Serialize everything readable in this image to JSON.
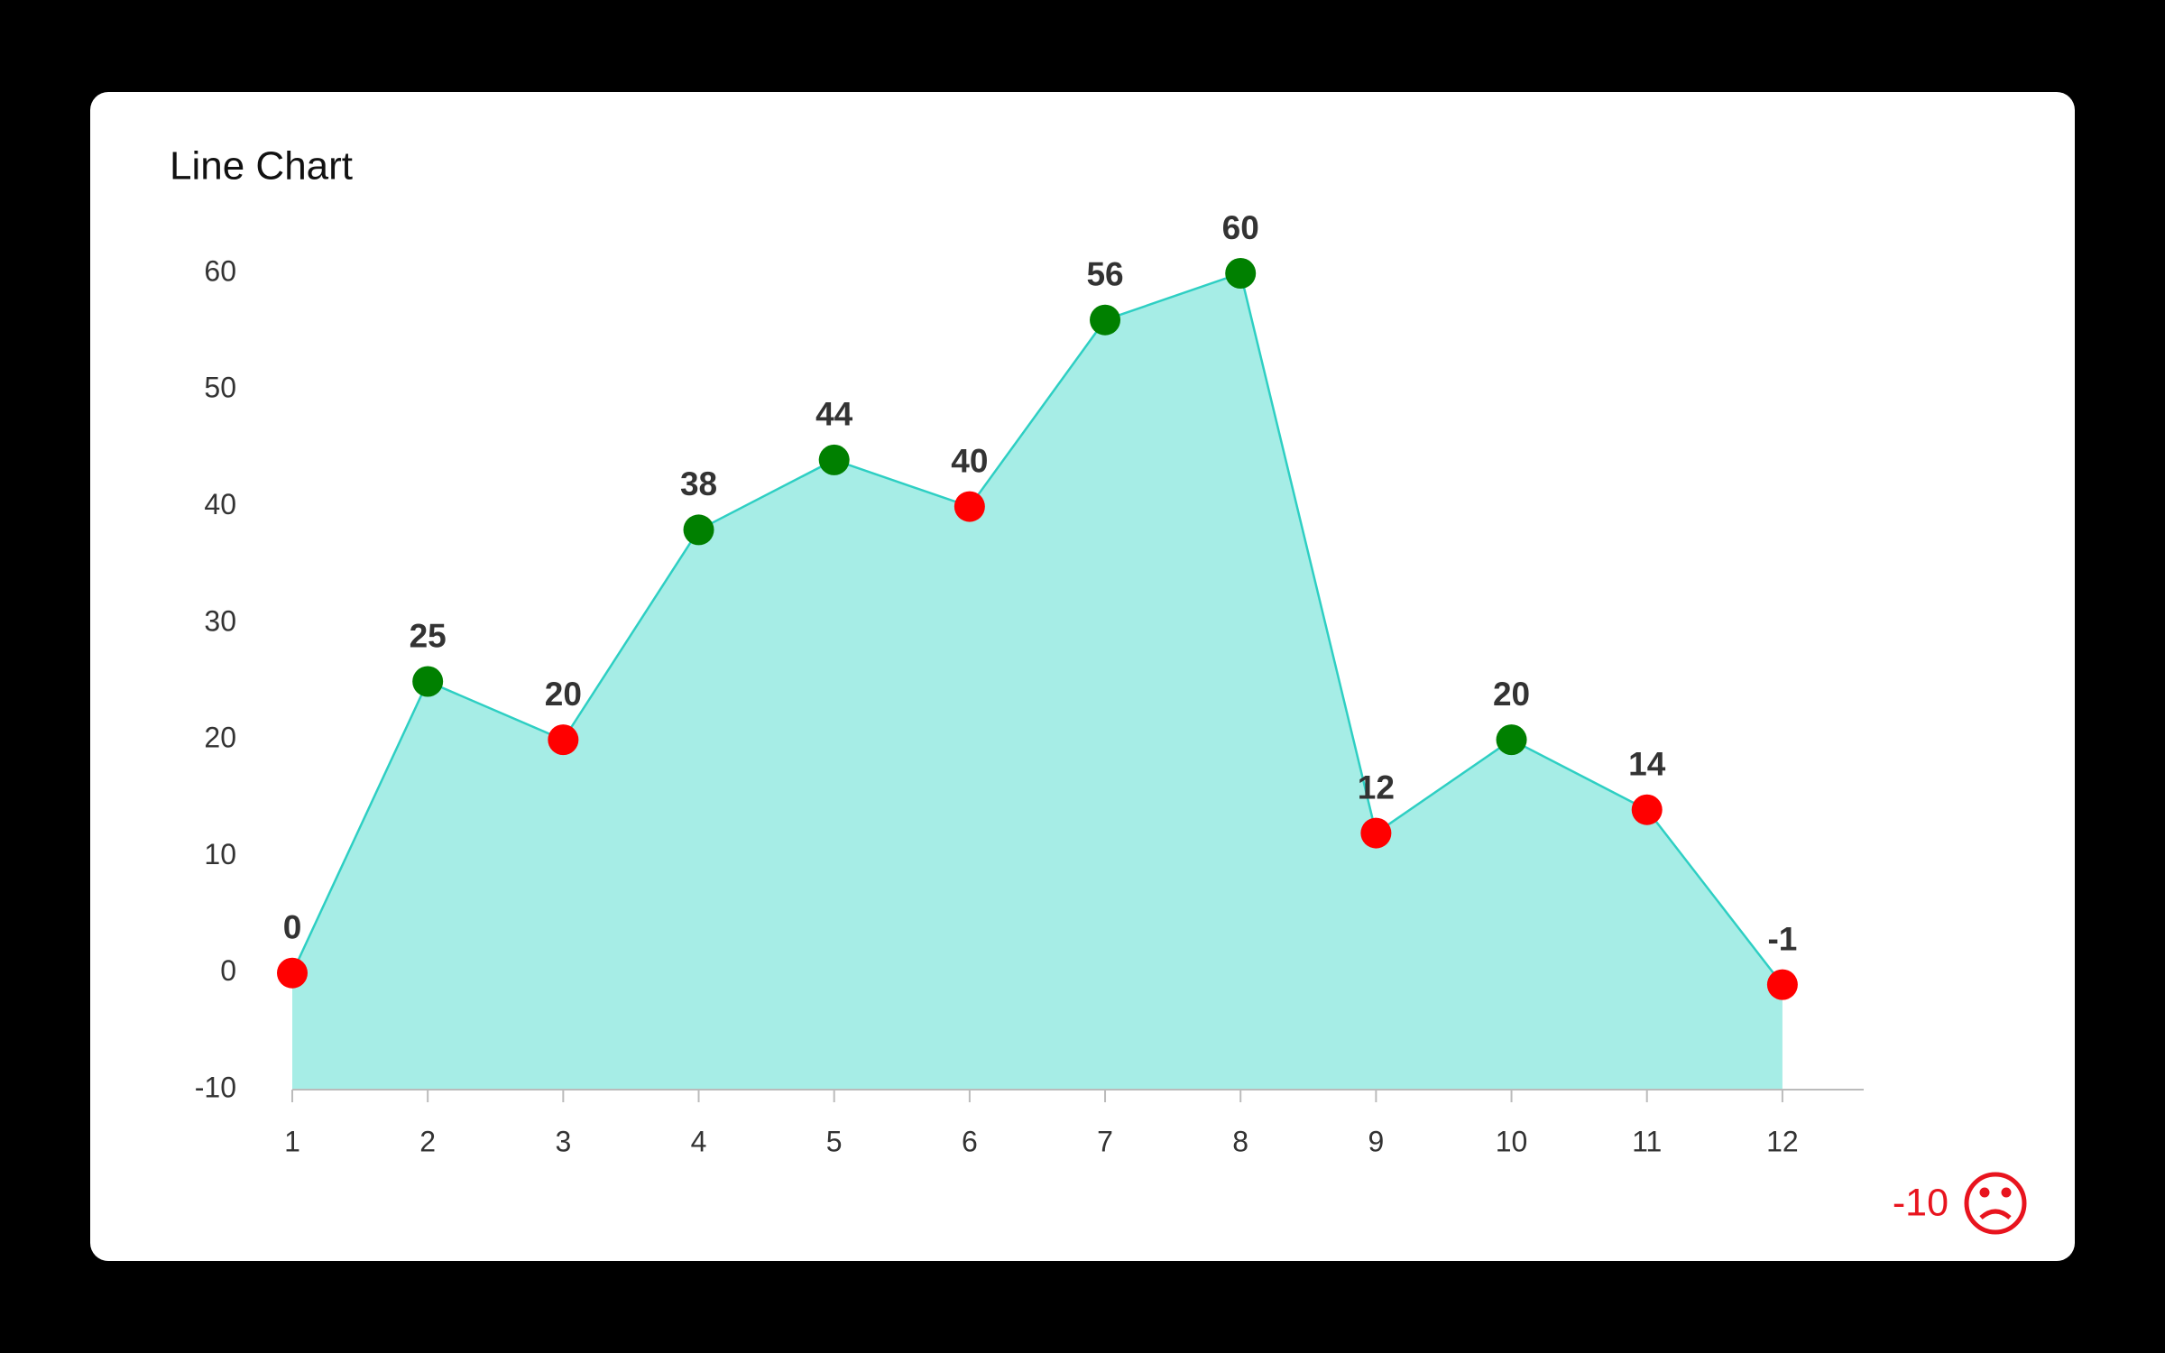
{
  "chart_data": {
    "type": "area",
    "title": "Line Chart",
    "x": [
      1,
      2,
      3,
      4,
      5,
      6,
      7,
      8,
      9,
      10,
      11,
      12
    ],
    "values": [
      0,
      25,
      20,
      38,
      44,
      40,
      56,
      60,
      12,
      20,
      14,
      -1
    ],
    "point_colors": [
      "#ff0000",
      "#008000",
      "#ff0000",
      "#008000",
      "#008000",
      "#ff0000",
      "#008000",
      "#008000",
      "#ff0000",
      "#008000",
      "#ff0000",
      "#ff0000"
    ],
    "line_color": "#2ecfc3",
    "fill_color": "#a6ede6",
    "xlim": [
      1,
      12.6
    ],
    "xticks": [
      1,
      2,
      3,
      4,
      5,
      6,
      7,
      8,
      9,
      10,
      11,
      12
    ],
    "ylim": [
      -10,
      60
    ],
    "yticks": [
      -10,
      0,
      10,
      20,
      30,
      40,
      50,
      60
    ],
    "grid": false,
    "annotation": "-10"
  }
}
